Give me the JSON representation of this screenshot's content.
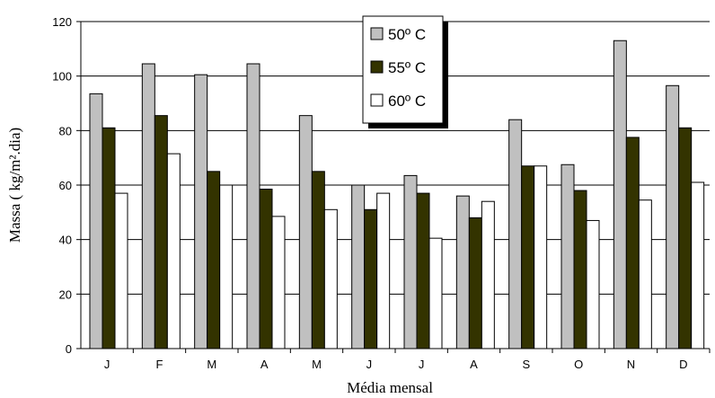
{
  "chart_data": {
    "type": "bar",
    "title": "",
    "xlabel": "Média mensal",
    "ylabel": "Massa ( kg/m².dia)",
    "ylim": [
      0,
      120
    ],
    "yticks": [
      0,
      20,
      40,
      60,
      80,
      100,
      120
    ],
    "grid": true,
    "legend_position": "top-center",
    "categories": [
      "J",
      "F",
      "M",
      "A",
      "M",
      "J",
      "J",
      "A",
      "S",
      "O",
      "N",
      "D"
    ],
    "series": [
      {
        "name": "50º C",
        "color": "#c0c0c0",
        "values": [
          93.5,
          104.5,
          100.5,
          104.5,
          85.5,
          60,
          63.5,
          56,
          84,
          67.5,
          113,
          96.5
        ]
      },
      {
        "name": "55º C",
        "color": "#333300",
        "values": [
          81,
          85.5,
          65,
          58.5,
          65,
          51,
          57,
          48,
          67,
          58,
          77.5,
          81
        ]
      },
      {
        "name": "60º C",
        "color": "#ffffff",
        "values": [
          57,
          71.5,
          60,
          48.5,
          51,
          57,
          40.5,
          54,
          67,
          47,
          54.5,
          61
        ]
      }
    ]
  }
}
